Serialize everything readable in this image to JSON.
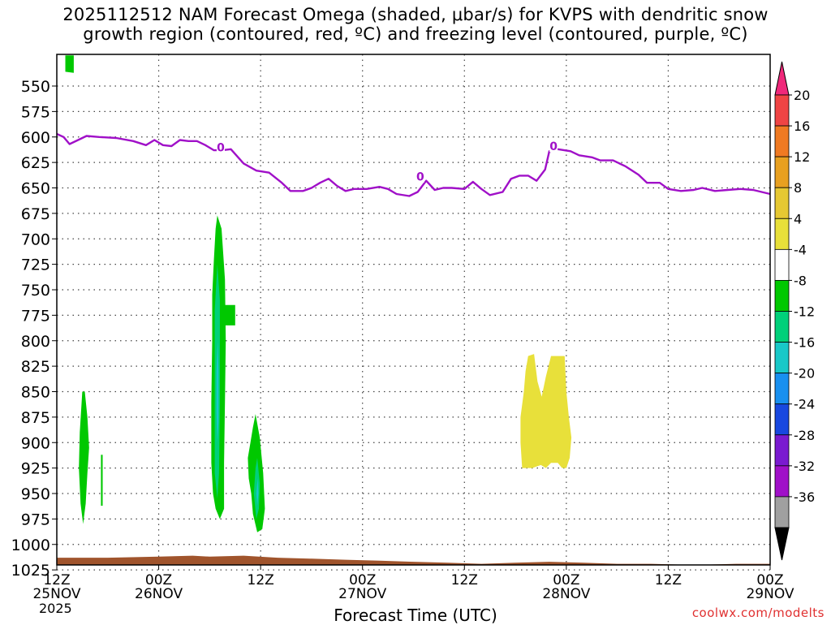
{
  "title": {
    "line1": "2025112512 NAM Forecast Omega (shaded, μbar/s) for KVPS with dendritic snow",
    "line2": "growth region (contoured, red, ºC) and freezing level (contoured, purple, ºC)"
  },
  "xlabel": "Forecast Time (UTC)",
  "credit": "coolwx.com/modelts",
  "year": "2025",
  "chart_data": {
    "type": "heatmap",
    "x_ticks": [
      {
        "h": 0,
        "line1": "12Z",
        "line2": "25NOV"
      },
      {
        "h": 12,
        "line1": "00Z",
        "line2": "26NOV"
      },
      {
        "h": 24,
        "line1": "12Z",
        "line2": ""
      },
      {
        "h": 36,
        "line1": "00Z",
        "line2": "27NOV"
      },
      {
        "h": 48,
        "line1": "12Z",
        "line2": ""
      },
      {
        "h": 60,
        "line1": "00Z",
        "line2": "28NOV"
      },
      {
        "h": 72,
        "line1": "12Z",
        "line2": ""
      },
      {
        "h": 84,
        "line1": "00Z",
        "line2": "29NOV"
      }
    ],
    "xlim": [
      0,
      84
    ],
    "y_ticks": [
      550,
      575,
      600,
      625,
      650,
      675,
      700,
      725,
      750,
      775,
      800,
      825,
      850,
      875,
      900,
      925,
      950,
      975,
      1000,
      1025
    ],
    "ylim": [
      520,
      1030
    ],
    "colorbar": {
      "labels": [
        "20",
        "16",
        "12",
        "8",
        "4",
        "-4",
        "-8",
        "-12",
        "-16",
        "-20",
        "-24",
        "-28",
        "-32",
        "-36"
      ],
      "colors": [
        "#f0287a",
        "#f04444",
        "#f07a22",
        "#e8a020",
        "#e6c833",
        "#e8e03a",
        "#ffffff",
        "#00c800",
        "#00d07a",
        "#18c8c8",
        "#1890f0",
        "#1848e0",
        "#7a1ad0",
        "#a010c8",
        "#a0a0a0",
        "#000000"
      ]
    },
    "freezing_level": {
      "color": "#a010c8",
      "label": "0",
      "points": [
        [
          0,
          597
        ],
        [
          0.8,
          600
        ],
        [
          1.5,
          607
        ],
        [
          2.5,
          603
        ],
        [
          3.5,
          599
        ],
        [
          5,
          600
        ],
        [
          7,
          601
        ],
        [
          9,
          604
        ],
        [
          10.5,
          608
        ],
        [
          11.5,
          603
        ],
        [
          12.5,
          608
        ],
        [
          13.5,
          609
        ],
        [
          14.5,
          603
        ],
        [
          15.5,
          604
        ],
        [
          16.5,
          604
        ],
        [
          17.5,
          608
        ],
        [
          18.5,
          613
        ],
        [
          19.5,
          613
        ],
        [
          20.5,
          612
        ],
        [
          22,
          626
        ],
        [
          23.5,
          633
        ],
        [
          25,
          635
        ],
        [
          26.5,
          645
        ],
        [
          27.5,
          653
        ],
        [
          29,
          653
        ],
        [
          30,
          650
        ],
        [
          31,
          645
        ],
        [
          32,
          641
        ],
        [
          33,
          648
        ],
        [
          34,
          653
        ],
        [
          35,
          651
        ],
        [
          36.5,
          651
        ],
        [
          38,
          649
        ],
        [
          39,
          651
        ],
        [
          40,
          656
        ],
        [
          41.5,
          658
        ],
        [
          42.5,
          654
        ],
        [
          43.5,
          643
        ],
        [
          44.5,
          652
        ],
        [
          45.5,
          650
        ],
        [
          46.5,
          650
        ],
        [
          48,
          651
        ],
        [
          49,
          644
        ],
        [
          50,
          651
        ],
        [
          51,
          657
        ],
        [
          52.5,
          654
        ],
        [
          53.5,
          641
        ],
        [
          54.5,
          638
        ],
        [
          55.5,
          638
        ],
        [
          56.5,
          643
        ],
        [
          57.5,
          632
        ],
        [
          58,
          614
        ],
        [
          59,
          612
        ],
        [
          60.5,
          614
        ],
        [
          61.5,
          618
        ],
        [
          63,
          620
        ],
        [
          64,
          623
        ],
        [
          65.5,
          623
        ],
        [
          67,
          629
        ],
        [
          68.5,
          637
        ],
        [
          69.5,
          645
        ],
        [
          71,
          645
        ],
        [
          72,
          651
        ],
        [
          73.5,
          653
        ],
        [
          75,
          652
        ],
        [
          76,
          650
        ],
        [
          77.5,
          653
        ],
        [
          79,
          652
        ],
        [
          80.5,
          651
        ],
        [
          82,
          652
        ],
        [
          84,
          656
        ]
      ],
      "contour_labels": [
        [
          19.3,
          610
        ],
        [
          42.8,
          639
        ],
        [
          58.5,
          609
        ]
      ]
    },
    "omega_regions": [
      {
        "value": -4,
        "color": "#00c800",
        "points": [
          [
            1.0,
            520
          ],
          [
            2.0,
            520
          ],
          [
            2.0,
            537
          ],
          [
            1.0,
            536
          ]
        ]
      },
      {
        "value": -4,
        "color": "#00c800",
        "points": [
          [
            3.0,
            850
          ],
          [
            3.3,
            850
          ],
          [
            3.6,
            875
          ],
          [
            3.8,
            905
          ],
          [
            3.6,
            930
          ],
          [
            3.4,
            960
          ],
          [
            3.1,
            980
          ],
          [
            2.8,
            960
          ],
          [
            2.6,
            925
          ],
          [
            2.7,
            890
          ]
        ]
      },
      {
        "value": -4,
        "color": "#00c800",
        "points": [
          [
            5.2,
            912
          ],
          [
            5.4,
            912
          ],
          [
            5.4,
            962
          ],
          [
            5.2,
            962
          ]
        ]
      },
      {
        "value": -4,
        "color": "#00c800",
        "points": [
          [
            18.9,
            677
          ],
          [
            19.4,
            690
          ],
          [
            19.8,
            740
          ],
          [
            19.9,
            800
          ],
          [
            19.8,
            860
          ],
          [
            19.7,
            920
          ],
          [
            19.7,
            965
          ],
          [
            19.2,
            975
          ],
          [
            18.7,
            965
          ],
          [
            18.4,
            950
          ],
          [
            18.2,
            920
          ],
          [
            18.2,
            860
          ],
          [
            18.3,
            800
          ],
          [
            18.3,
            755
          ],
          [
            18.5,
            720
          ],
          [
            18.7,
            690
          ]
        ]
      },
      {
        "value": -4,
        "color": "#00c800",
        "points": [
          [
            19.7,
            765
          ],
          [
            21.0,
            765
          ],
          [
            21.0,
            785
          ],
          [
            19.7,
            785
          ]
        ]
      },
      {
        "value": -8,
        "color": "#00d07a",
        "points": [
          [
            18.9,
            725
          ],
          [
            19.2,
            760
          ],
          [
            19.2,
            860
          ],
          [
            19.1,
            930
          ],
          [
            18.9,
            955
          ],
          [
            18.6,
            930
          ],
          [
            18.6,
            840
          ],
          [
            18.6,
            770
          ]
        ]
      },
      {
        "value": -12,
        "color": "#18c8c8",
        "points": [
          [
            18.95,
            800
          ],
          [
            19.05,
            830
          ],
          [
            19.05,
            880
          ],
          [
            18.9,
            900
          ],
          [
            18.8,
            870
          ],
          [
            18.8,
            830
          ]
        ]
      },
      {
        "value": -4,
        "color": "#00c800",
        "points": [
          [
            23.4,
            872
          ],
          [
            23.9,
            895
          ],
          [
            24.3,
            930
          ],
          [
            24.5,
            965
          ],
          [
            24.2,
            985
          ],
          [
            23.6,
            988
          ],
          [
            23.1,
            970
          ],
          [
            22.9,
            950
          ],
          [
            22.6,
            935
          ],
          [
            22.5,
            915
          ],
          [
            22.8,
            900
          ],
          [
            23.1,
            885
          ]
        ]
      },
      {
        "value": -8,
        "color": "#00d07a",
        "points": [
          [
            23.6,
            915
          ],
          [
            23.9,
            940
          ],
          [
            23.8,
            965
          ],
          [
            23.5,
            975
          ],
          [
            23.2,
            950
          ],
          [
            23.4,
            925
          ]
        ]
      },
      {
        "value": -12,
        "color": "#18c8c8",
        "points": [
          [
            23.65,
            935
          ],
          [
            23.75,
            950
          ],
          [
            23.6,
            962
          ],
          [
            23.5,
            950
          ]
        ]
      },
      {
        "value": 4,
        "color": "#e8e03a",
        "points": [
          [
            55.5,
            815
          ],
          [
            56.2,
            813
          ],
          [
            56.6,
            840
          ],
          [
            57.1,
            855
          ],
          [
            57.6,
            835
          ],
          [
            58.2,
            815
          ],
          [
            59.8,
            815
          ],
          [
            60.0,
            850
          ],
          [
            60.3,
            875
          ],
          [
            60.6,
            895
          ],
          [
            60.4,
            915
          ],
          [
            60.0,
            925
          ],
          [
            59.5,
            925
          ],
          [
            59.0,
            920
          ],
          [
            58.2,
            920
          ],
          [
            57.6,
            925
          ],
          [
            57.0,
            922
          ],
          [
            56.0,
            925
          ],
          [
            54.8,
            925
          ],
          [
            54.6,
            900
          ],
          [
            54.6,
            875
          ],
          [
            55.0,
            850
          ],
          [
            55.2,
            830
          ]
        ]
      }
    ],
    "terrain": {
      "color": "#a0542c",
      "bottom": 1030,
      "points": [
        [
          0,
          1013
        ],
        [
          6,
          1013
        ],
        [
          12,
          1012
        ],
        [
          16,
          1011
        ],
        [
          18,
          1012
        ],
        [
          22,
          1011
        ],
        [
          26,
          1013
        ],
        [
          30,
          1014
        ],
        [
          34,
          1015
        ],
        [
          38,
          1016
        ],
        [
          42,
          1017
        ],
        [
          46,
          1018
        ],
        [
          50,
          1019
        ],
        [
          54,
          1018
        ],
        [
          58,
          1017
        ],
        [
          62,
          1018
        ],
        [
          66,
          1019
        ],
        [
          70,
          1019
        ],
        [
          74,
          1020
        ],
        [
          75,
          1021
        ],
        [
          76,
          1020
        ],
        [
          80,
          1019
        ],
        [
          84,
          1019
        ]
      ]
    }
  }
}
